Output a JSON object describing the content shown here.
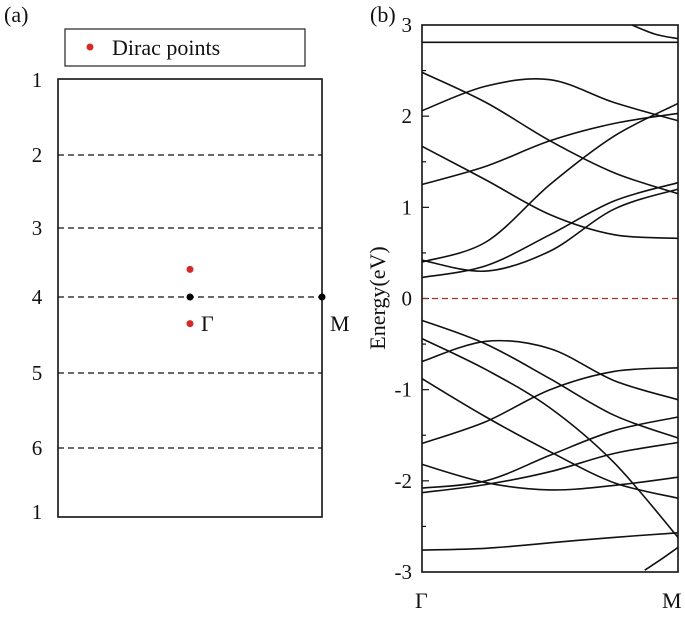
{
  "chart_data": [
    {
      "type": "diagram",
      "panel_label": "(a)",
      "legend": [
        {
          "label": "Dirac points",
          "color": "#d42a2a"
        }
      ],
      "layer_labels": [
        "1",
        "2",
        "3",
        "4",
        "5",
        "6",
        "1"
      ],
      "points": [
        {
          "name": "dirac-point-upper",
          "layer": 3.6,
          "k": 0.5,
          "color": "#d42a2a"
        },
        {
          "name": "dirac-point-lower",
          "layer": 4.35,
          "k": 0.5,
          "color": "#d42a2a"
        },
        {
          "name": "gamma-point",
          "layer": 4,
          "k": 0.5,
          "color": "#000000",
          "label": "Γ"
        },
        {
          "name": "m-point",
          "layer": 4,
          "k": 1.0,
          "color": "#000000",
          "label": "M"
        }
      ]
    },
    {
      "type": "line",
      "panel_label": "(b)",
      "ylabel": "Energy(eV)",
      "ylim": [
        -3,
        3
      ],
      "yticks": [
        "3",
        "2",
        "1",
        "0",
        "-1",
        "-2",
        "-3"
      ],
      "xticks": [
        "Γ",
        "M"
      ],
      "fermi_level": 0,
      "fermi_color": "#a83232",
      "k": [
        0,
        0.25,
        0.5,
        0.75,
        1.0
      ],
      "bands": [
        [
          2.81,
          2.81,
          2.81,
          2.81,
          2.81
        ],
        [
          2.48,
          2.15,
          1.73,
          1.38,
          1.15
        ],
        [
          2.06,
          2.33,
          2.4,
          2.15,
          1.95
        ],
        [
          1.67,
          1.3,
          0.92,
          0.7,
          0.66
        ],
        [
          1.25,
          1.45,
          1.73,
          1.92,
          2.03
        ],
        [
          0.4,
          0.62,
          1.25,
          1.78,
          2.14
        ],
        [
          0.42,
          0.3,
          0.52,
          0.98,
          1.2
        ],
        [
          0.23,
          0.36,
          0.7,
          1.07,
          1.27
        ],
        [
          -0.24,
          -0.5,
          -0.88,
          -1.28,
          -1.53
        ],
        [
          -0.69,
          -0.47,
          -0.55,
          -0.9,
          -1.11
        ],
        [
          -0.44,
          -0.78,
          -1.2,
          -1.8,
          -2.62
        ],
        [
          -0.88,
          -1.3,
          -1.68,
          -2.02,
          -2.19
        ],
        [
          -1.59,
          -1.35,
          -1.0,
          -0.8,
          -0.76
        ],
        [
          -1.82,
          -2.02,
          -2.1,
          -2.05,
          -1.96
        ],
        [
          -2.08,
          -2.0,
          -1.72,
          -1.45,
          -1.3
        ],
        [
          -2.13,
          -2.04,
          -1.9,
          -1.7,
          -1.58
        ],
        [
          -2.76,
          -2.74,
          -2.68,
          -2.62,
          -2.57
        ]
      ],
      "partial_bands": [
        {
          "k": [
            0.82,
            0.91,
            1.0
          ],
          "e": [
            3.0,
            2.9,
            2.85
          ]
        },
        {
          "k": [
            0.87,
            0.94,
            1.0
          ],
          "e": [
            -2.98,
            -2.85,
            -2.73
          ]
        }
      ]
    }
  ]
}
